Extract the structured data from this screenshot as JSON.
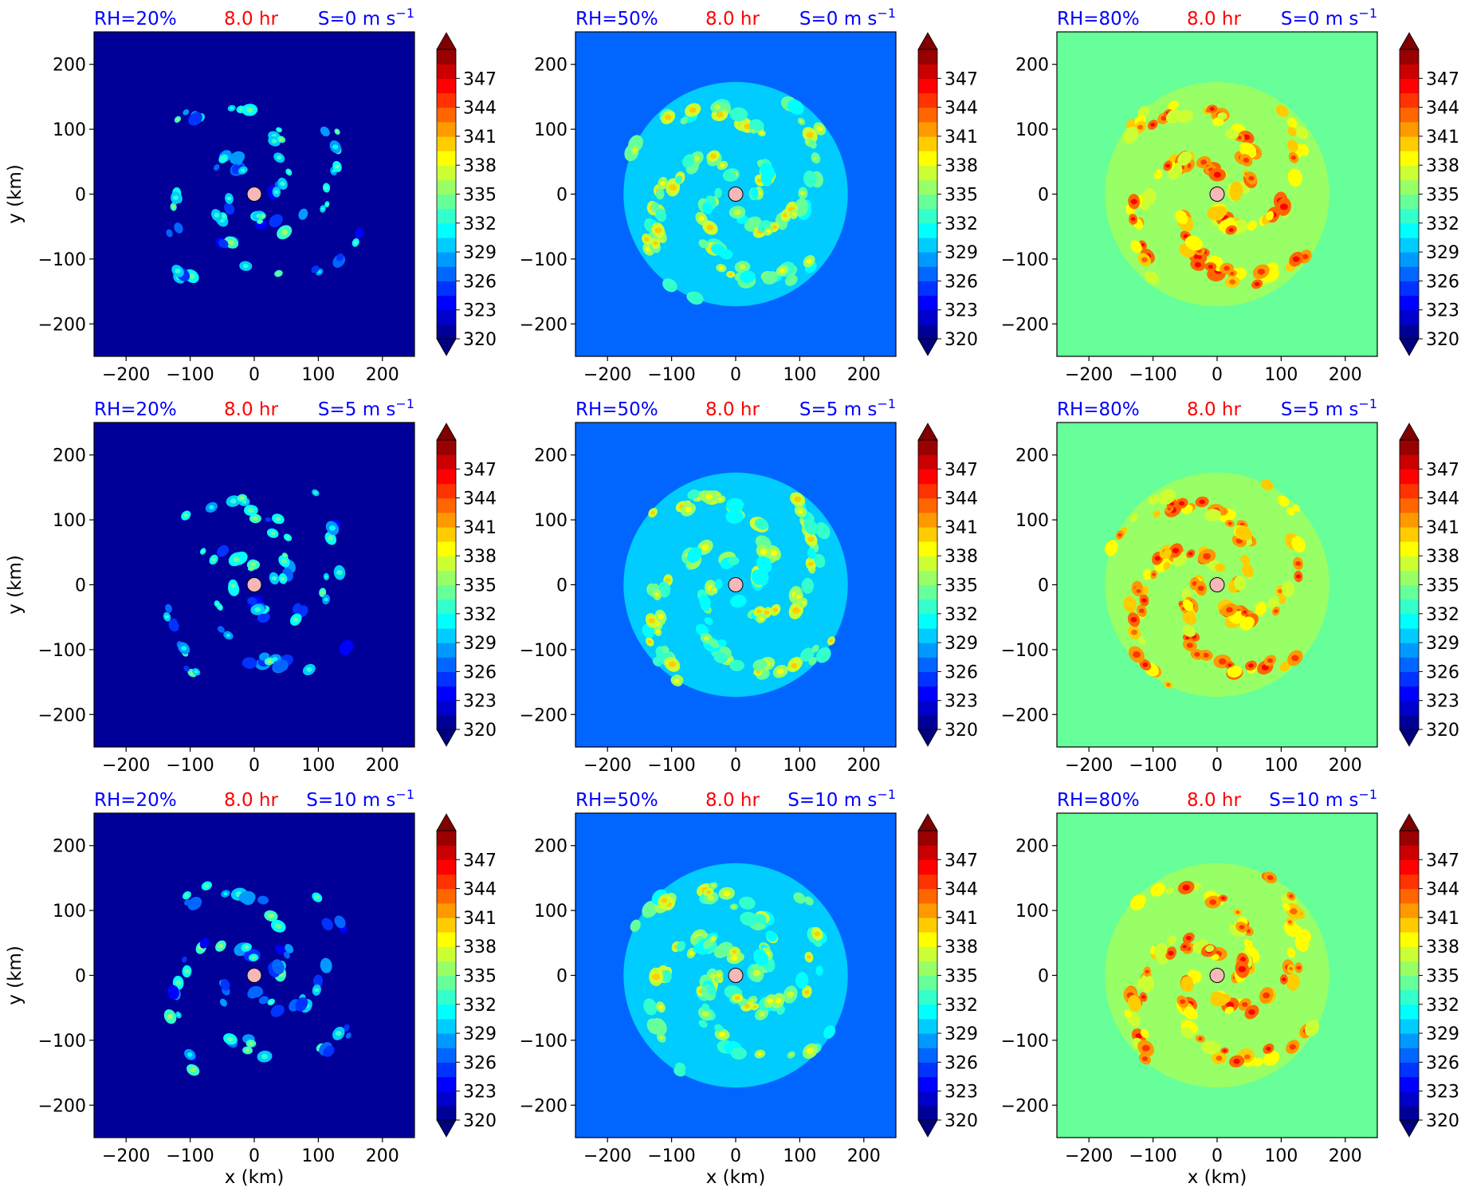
{
  "figure": {
    "common": {
      "time_label": "8.0 hr",
      "xlabel": "x (km)",
      "ylabel": "y (km)",
      "xlim": [
        -250,
        250
      ],
      "ylim": [
        -250,
        250
      ],
      "xticks": [
        -200,
        -100,
        0,
        100,
        200
      ],
      "yticks": [
        -200,
        -100,
        0,
        100,
        200
      ],
      "colorbar": {
        "min": 320,
        "max": 350,
        "step": 1.5,
        "ticks": [
          320,
          323,
          326,
          329,
          332,
          335,
          338,
          341,
          344,
          347
        ],
        "extend": "both",
        "colormap": "jet"
      },
      "colors": {
        "rh_label": "#0000ff",
        "time_label": "#ff0000",
        "shear_label": "#0000ff",
        "center_marker": "#f4b8b8"
      }
    },
    "column_labels": [
      "RH=20%",
      "RH=50%",
      "RH=80%"
    ],
    "row_labels": [
      "S=0 m s",
      "S=5 m s",
      "S=10 m s"
    ],
    "shear_unit_exponent": "−1"
  },
  "chart_data": [
    {
      "type": "heatmap",
      "row": 0,
      "col": 0,
      "rh_percent": 20,
      "shear_ms": 0,
      "background_value": 320.0,
      "disc_value": 320.0,
      "cell_value_range": [
        324,
        333
      ]
    },
    {
      "type": "heatmap",
      "row": 0,
      "col": 1,
      "rh_percent": 50,
      "shear_ms": 0,
      "background_value": 326.0,
      "disc_value": 329.0,
      "cell_value_range": [
        331,
        338
      ]
    },
    {
      "type": "heatmap",
      "row": 0,
      "col": 2,
      "rh_percent": 80,
      "shear_ms": 0,
      "background_value": 334.0,
      "disc_value": 335.0,
      "cell_value_range": [
        337,
        344
      ]
    },
    {
      "type": "heatmap",
      "row": 1,
      "col": 0,
      "rh_percent": 20,
      "shear_ms": 5,
      "background_value": 320.0,
      "disc_value": 320.0,
      "cell_value_range": [
        324,
        333
      ]
    },
    {
      "type": "heatmap",
      "row": 1,
      "col": 1,
      "rh_percent": 50,
      "shear_ms": 5,
      "background_value": 326.0,
      "disc_value": 329.0,
      "cell_value_range": [
        331,
        338
      ]
    },
    {
      "type": "heatmap",
      "row": 1,
      "col": 2,
      "rh_percent": 80,
      "shear_ms": 5,
      "background_value": 334.0,
      "disc_value": 335.0,
      "cell_value_range": [
        337,
        344
      ]
    },
    {
      "type": "heatmap",
      "row": 2,
      "col": 0,
      "rh_percent": 20,
      "shear_ms": 10,
      "background_value": 320.0,
      "disc_value": 320.0,
      "cell_value_range": [
        324,
        333
      ]
    },
    {
      "type": "heatmap",
      "row": 2,
      "col": 1,
      "rh_percent": 50,
      "shear_ms": 10,
      "background_value": 326.0,
      "disc_value": 329.0,
      "cell_value_range": [
        331,
        338
      ]
    },
    {
      "type": "heatmap",
      "row": 2,
      "col": 2,
      "rh_percent": 80,
      "shear_ms": 10,
      "background_value": 334.0,
      "disc_value": 335.0,
      "cell_value_range": [
        337,
        344
      ]
    }
  ]
}
